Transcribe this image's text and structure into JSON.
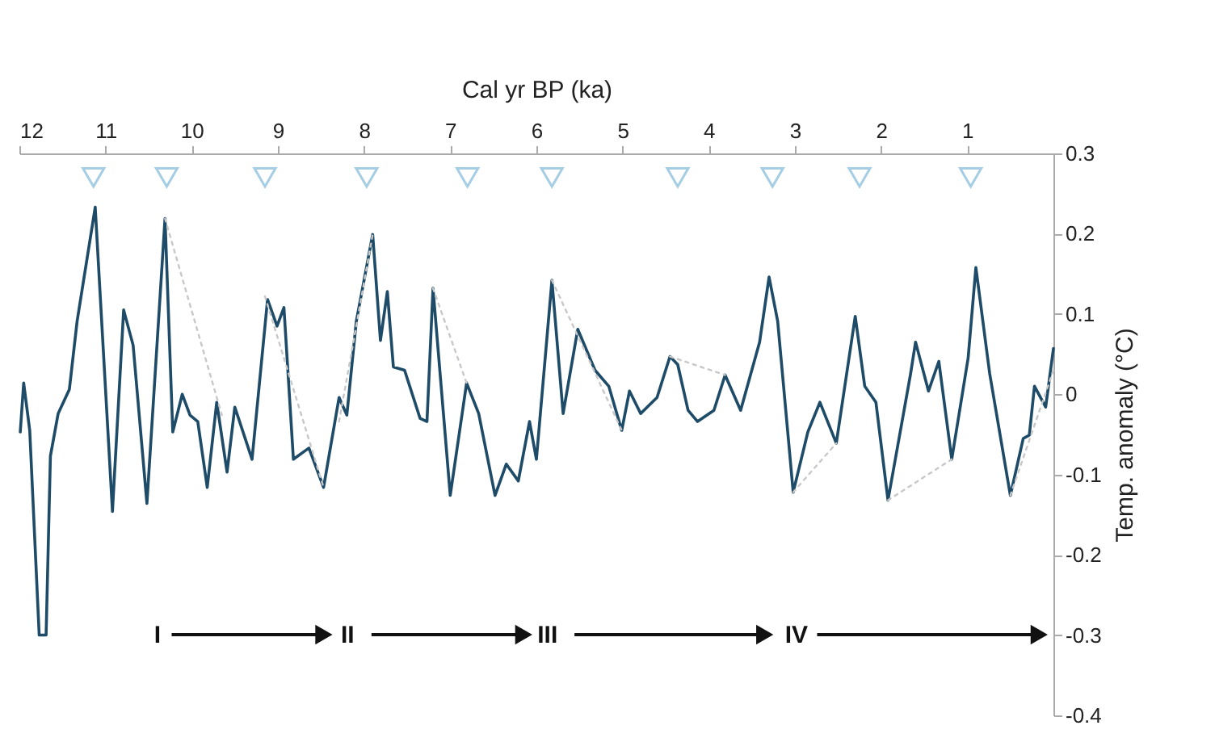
{
  "chart_data": {
    "type": "line",
    "xlabel": "Cal yr BP (ka)",
    "ylabel": "Temp. anomaly (°C)",
    "xlim": [
      12,
      0
    ],
    "xticks": [
      12,
      11,
      10,
      9,
      8,
      7,
      6,
      5,
      4,
      3,
      2,
      1
    ],
    "ylim": [
      -0.4,
      0.3
    ],
    "yticks": [
      0.3,
      0.2,
      0.1,
      0,
      -0.1,
      -0.2,
      -0.3,
      -0.4
    ],
    "grid": false,
    "series": [
      {
        "color": "#1d4b68",
        "line_style": "solid",
        "x": [
          11.99,
          11.95,
          11.88,
          11.77,
          11.69,
          11.64,
          11.55,
          11.42,
          11.33,
          11.12,
          10.92,
          10.79,
          10.68,
          10.52,
          10.31,
          10.22,
          10.11,
          10.02,
          9.93,
          9.82,
          9.71,
          9.59,
          9.5,
          9.3,
          9.12,
          9.01,
          8.93,
          8.82,
          8.64,
          8.47,
          8.29,
          8.2,
          8.09,
          7.9,
          7.81,
          7.73,
          7.66,
          7.53,
          7.35,
          7.27,
          7.2,
          7.0,
          6.81,
          6.67,
          6.48,
          6.35,
          6.21,
          6.08,
          6.0,
          5.82,
          5.69,
          5.52,
          5.32,
          5.16,
          5.01,
          4.92,
          4.79,
          4.6,
          4.45,
          4.36,
          4.24,
          4.13,
          3.94,
          3.81,
          3.63,
          3.41,
          3.3,
          3.2,
          3.02,
          2.85,
          2.71,
          2.52,
          2.3,
          2.19,
          2.06,
          1.92,
          1.66,
          1.6,
          1.45,
          1.33,
          1.18,
          0.99,
          0.9,
          0.74,
          0.5,
          0.35,
          0.28,
          0.22,
          0.09,
          0.0
        ],
        "values": [
          -0.047,
          0.014,
          -0.045,
          -0.3,
          -0.3,
          -0.077,
          -0.024,
          0.006,
          0.091,
          0.233,
          -0.146,
          0.105,
          0.061,
          -0.136,
          0.219,
          -0.047,
          0.0,
          -0.026,
          -0.034,
          -0.116,
          -0.01,
          -0.097,
          -0.016,
          -0.081,
          0.118,
          0.085,
          0.108,
          -0.081,
          -0.067,
          -0.116,
          -0.004,
          -0.026,
          0.091,
          0.199,
          0.067,
          0.128,
          0.034,
          0.03,
          -0.03,
          -0.034,
          0.132,
          -0.126,
          0.014,
          -0.024,
          -0.126,
          -0.087,
          -0.108,
          -0.034,
          -0.081,
          0.142,
          -0.024,
          0.081,
          0.03,
          0.01,
          -0.045,
          0.004,
          -0.024,
          -0.004,
          0.047,
          0.037,
          -0.02,
          -0.034,
          -0.02,
          0.024,
          -0.02,
          0.065,
          0.146,
          0.091,
          -0.122,
          -0.047,
          -0.01,
          -0.061,
          0.097,
          0.01,
          -0.01,
          -0.132,
          0.024,
          0.065,
          0.004,
          0.041,
          -0.081,
          0.045,
          0.158,
          0.026,
          -0.126,
          -0.055,
          -0.051,
          0.01,
          -0.016,
          0.057
        ]
      },
      {
        "color": "#c8c8c8",
        "line_style": "dotted",
        "x": [
          10.31,
          9.65
        ],
        "values": [
          0.219,
          -0.026
        ]
      },
      {
        "color": "#c8c8c8",
        "line_style": "dotted",
        "x": [
          9.15,
          8.47
        ],
        "values": [
          0.122,
          -0.116
        ]
      },
      {
        "color": "#c8c8c8",
        "line_style": "dotted",
        "x": [
          8.29,
          7.9
        ],
        "values": [
          -0.034,
          0.199
        ]
      },
      {
        "color": "#c8c8c8",
        "line_style": "dotted",
        "x": [
          7.2,
          6.81
        ],
        "values": [
          0.132,
          0.014
        ]
      },
      {
        "color": "#c8c8c8",
        "line_style": "dotted",
        "x": [
          5.82,
          5.01
        ],
        "values": [
          0.142,
          -0.045
        ]
      },
      {
        "color": "#c8c8c8",
        "line_style": "dotted",
        "x": [
          4.45,
          3.81
        ],
        "values": [
          0.047,
          0.024
        ]
      },
      {
        "color": "#c8c8c8",
        "line_style": "dotted",
        "x": [
          3.02,
          2.52
        ],
        "values": [
          -0.122,
          -0.061
        ]
      },
      {
        "color": "#c8c8c8",
        "line_style": "dotted",
        "x": [
          1.92,
          1.18
        ],
        "values": [
          -0.132,
          -0.081
        ]
      },
      {
        "color": "#c8c8c8",
        "line_style": "dotted",
        "x": [
          0.5,
          0.0
        ],
        "values": [
          -0.126,
          0.03
        ]
      },
      {
        "type": "scatter",
        "marker": "triangle",
        "color": "#7fb8d8",
        "x": [
          11.14,
          10.29,
          9.15,
          7.97,
          6.8,
          5.82,
          4.36,
          3.26,
          2.25,
          0.96
        ],
        "values": [
          0.27,
          0.27,
          0.27,
          0.27,
          0.27,
          0.27,
          0.27,
          0.27,
          0.27,
          0.27
        ]
      }
    ],
    "annotations": [
      "I",
      "II",
      "III",
      "IV"
    ]
  }
}
